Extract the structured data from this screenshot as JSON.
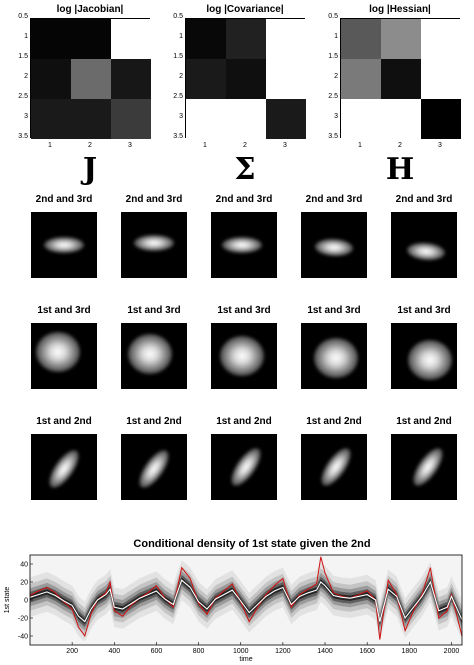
{
  "matrix_panels": [
    {
      "title": "log |Jacobian|",
      "symbol": "J",
      "cells": [
        [
          0.02,
          0.02,
          1.0
        ],
        [
          0.06,
          0.42,
          0.09
        ],
        [
          0.1,
          0.1,
          0.23
        ]
      ]
    },
    {
      "title": "log |Covariance|",
      "symbol": "Σ",
      "cells": [
        [
          0.03,
          0.13,
          1.0
        ],
        [
          0.1,
          0.06,
          1.0
        ],
        [
          1.0,
          1.0,
          0.1
        ]
      ]
    },
    {
      "title": "log |Hessian|",
      "symbol": "H",
      "cells": [
        [
          0.35,
          0.55,
          1.0
        ],
        [
          0.48,
          0.06,
          1.0
        ],
        [
          1.0,
          1.0,
          0.0
        ]
      ]
    }
  ],
  "matrix_axes": {
    "yticks": [
      "0.5",
      "1",
      "1.5",
      "2",
      "2.5",
      "3",
      "3.5"
    ],
    "xticks": [
      "1",
      "2",
      "3"
    ]
  },
  "gaussian_rows": [
    {
      "label": "2nd and 3rd",
      "count": 5
    },
    {
      "label": "1st and 3rd",
      "count": 5
    },
    {
      "label": "1st and 2nd",
      "count": 5
    }
  ],
  "chart_data": {
    "type": "line",
    "title": "Conditional density of 1st state given the 2nd",
    "xlabel": "time",
    "ylabel": "1st state",
    "xlim": [
      0,
      2050
    ],
    "ylim": [
      -50,
      50
    ],
    "xticks": [
      200,
      400,
      600,
      800,
      1000,
      1200,
      1400,
      1600,
      1800,
      2000
    ],
    "yticks": [
      -40,
      -20,
      0,
      20,
      40
    ],
    "series": [
      {
        "color": "#d01010",
        "x": [
          0,
          40,
          80,
          120,
          160,
          200,
          230,
          260,
          290,
          320,
          360,
          380,
          400,
          440,
          480,
          520,
          560,
          600,
          640,
          680,
          700,
          720,
          760,
          800,
          840,
          880,
          920,
          960,
          1000,
          1040,
          1080,
          1120,
          1160,
          1200,
          1240,
          1280,
          1320,
          1360,
          1380,
          1400,
          1440,
          1480,
          1520,
          1560,
          1600,
          1640,
          1660,
          1700,
          1740,
          1780,
          1820,
          1860,
          1900,
          1940,
          1980,
          2000,
          2050
        ],
        "y": [
          5,
          10,
          14,
          8,
          -2,
          -10,
          -30,
          -40,
          -15,
          0,
          8,
          20,
          -12,
          -18,
          -6,
          2,
          8,
          16,
          2,
          -8,
          14,
          36,
          24,
          -4,
          -16,
          2,
          10,
          18,
          -2,
          -24,
          -8,
          6,
          16,
          24,
          -8,
          6,
          12,
          18,
          48,
          30,
          8,
          4,
          2,
          6,
          10,
          0,
          -44,
          22,
          6,
          -34,
          -12,
          6,
          36,
          -20,
          -12,
          6,
          -40
        ]
      },
      {
        "color": "#ffffff",
        "x": [
          0,
          40,
          80,
          120,
          160,
          200,
          230,
          260,
          290,
          320,
          360,
          380,
          400,
          440,
          480,
          520,
          560,
          600,
          640,
          680,
          700,
          720,
          760,
          800,
          840,
          880,
          920,
          960,
          1000,
          1040,
          1080,
          1120,
          1160,
          1200,
          1240,
          1280,
          1320,
          1360,
          1380,
          1400,
          1440,
          1480,
          1520,
          1560,
          1600,
          1640,
          1660,
          1700,
          1740,
          1780,
          1820,
          1860,
          1900,
          1940,
          1980,
          2000,
          2050
        ],
        "y": [
          3,
          6,
          9,
          5,
          -1,
          -6,
          -18,
          -24,
          -10,
          0,
          6,
          12,
          -8,
          -10,
          -4,
          2,
          6,
          10,
          1,
          -5,
          9,
          22,
          14,
          -2,
          -10,
          1,
          6,
          11,
          -1,
          -14,
          -5,
          4,
          10,
          14,
          -5,
          4,
          8,
          11,
          20,
          16,
          5,
          3,
          2,
          4,
          6,
          0,
          -24,
          12,
          4,
          -20,
          -8,
          4,
          20,
          -12,
          -8,
          4,
          -22
        ]
      }
    ]
  }
}
